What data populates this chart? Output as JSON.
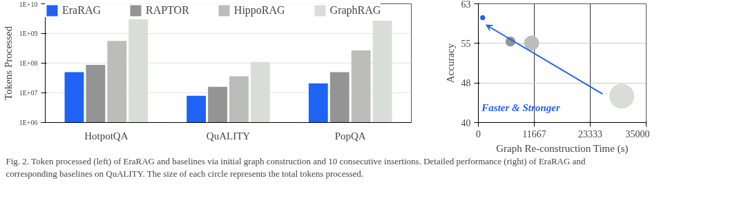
{
  "chart_data": [
    {
      "type": "bar",
      "ylabel": "Tokens Processed",
      "categories": [
        "HotpotQA",
        "QuALITY",
        "PopQA"
      ],
      "log": true,
      "ylim": [
        1000000,
        10000000000
      ],
      "yticks": [
        {
          "value": 1000000,
          "label": "1E+06"
        },
        {
          "value": 10000000,
          "label": "1E+07"
        },
        {
          "value": 100000000,
          "label": "1E+08"
        },
        {
          "value": 1000000000,
          "label": "1E+09"
        },
        {
          "value": 10000000000,
          "label": "1E+10"
        }
      ],
      "grid": "y",
      "legend": "top",
      "series": [
        {
          "name": "EraRAG",
          "color": "#1f63f5",
          "values": [
            50000000,
            8000000,
            21000000
          ]
        },
        {
          "name": "RAPTOR",
          "color": "#949494",
          "values": [
            87000000,
            16000000,
            50000000
          ]
        },
        {
          "name": "HippoRAG",
          "color": "#bcbdbb",
          "values": [
            560000000,
            36000000,
            270000000
          ]
        },
        {
          "name": "GraphRAG",
          "color": "#d9ddd8",
          "values": [
            3000000000,
            110000000,
            2700000000
          ]
        }
      ]
    },
    {
      "type": "bubble",
      "xlabel": "Graph Re-construction Time (s)",
      "ylabel": "Accuracy",
      "xlim": [
        0,
        35000
      ],
      "ylim": [
        40,
        63
      ],
      "xticks": [
        0,
        {
          "value": 11667,
          "label": "11667"
        },
        {
          "value": 23333,
          "label": "23333"
        },
        35000
      ],
      "yticks": [
        40,
        {
          "value": 47.67,
          "label": "48"
        },
        {
          "value": 55.33,
          "label": "55"
        },
        63
      ],
      "grid": true,
      "series": [
        {
          "color": "#1f63f5",
          "x": [
            900
          ],
          "values": [
            60.3
          ],
          "sizes": [
            0.04
          ]
        },
        {
          "color": "#949494",
          "x": [
            6700
          ],
          "values": [
            55.7
          ],
          "sizes": [
            0.16
          ]
        },
        {
          "color": "#bcbdbb",
          "x": [
            11100
          ],
          "values": [
            55.4
          ],
          "sizes": [
            0.36
          ]
        },
        {
          "color": "#d9ddd8",
          "x": [
            29900
          ],
          "values": [
            45.1
          ],
          "sizes": [
            1
          ]
        }
      ],
      "annotations": [
        "Faster & Stronger",
        "Fig. 2.  Token processed (left) of EraRAG and baselines via initial graph construction and 10 consecutive insertions. Detailed performance (right) of EraRAG and corresponding baselines on QuALITY. The size of each circle represents the total tokens processed."
      ]
    }
  ]
}
